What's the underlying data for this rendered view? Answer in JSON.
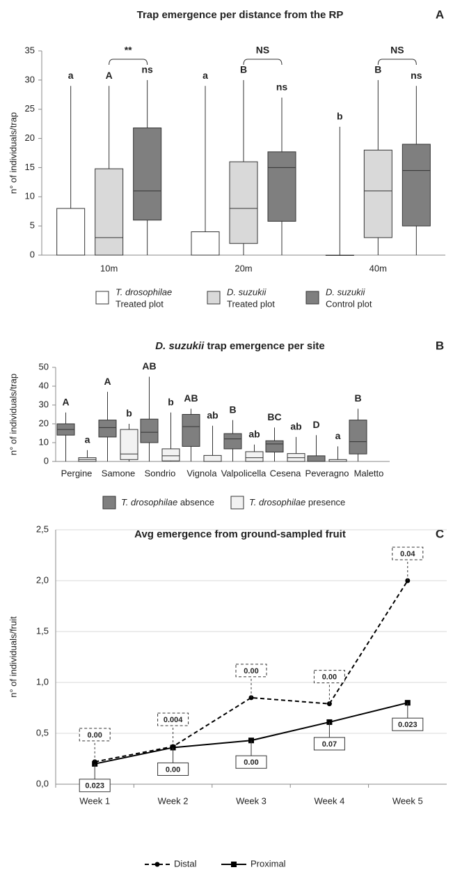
{
  "chart_data": [
    {
      "type": "box",
      "title": "Trap emergence per distance from the RP",
      "panel": "A",
      "ylabel": "n° of individuals/trap",
      "categories": [
        "10m",
        "20m",
        "40m"
      ],
      "ylim": [
        0,
        35
      ],
      "yticks": [
        0,
        5,
        10,
        15,
        20,
        25,
        30,
        35
      ],
      "grid": false,
      "group_labels": [
        "**",
        "NS",
        "NS"
      ],
      "series": [
        {
          "name": "T. drosophilae",
          "plot": "Treated plot",
          "color": "#ffffff",
          "min": [
            0,
            0,
            0
          ],
          "q1": [
            0,
            0,
            0
          ],
          "median": [
            0,
            0,
            0
          ],
          "q3": [
            8,
            4,
            0
          ],
          "max": [
            29,
            29,
            22
          ],
          "letters": [
            "a",
            "a",
            "b"
          ]
        },
        {
          "name": "D. suzukii",
          "plot": "Treated plot",
          "color": "#d9d9d9",
          "min": [
            0,
            0,
            0
          ],
          "q1": [
            0,
            2,
            3
          ],
          "median": [
            3,
            8,
            11
          ],
          "q3": [
            14.8,
            16,
            18
          ],
          "max": [
            29,
            30,
            30
          ],
          "letters": [
            "A",
            "B",
            "B"
          ]
        },
        {
          "name": "D. suzukii",
          "plot": "Control plot",
          "color": "#7f7f7f",
          "min": [
            0,
            0,
            0
          ],
          "q1": [
            6,
            5.8,
            5
          ],
          "median": [
            11,
            15,
            14.5
          ],
          "q3": [
            21.8,
            17.7,
            19
          ],
          "max": [
            30,
            27,
            29
          ],
          "letters": [
            "ns",
            "ns",
            "ns"
          ]
        }
      ]
    },
    {
      "type": "box",
      "title_species": "D. suzukii",
      "title": "trap emergence per site",
      "panel": "B",
      "ylabel": "n° of individuals/trap",
      "categories": [
        "Pergine",
        "Samone",
        "Sondrio",
        "Vignola",
        "Valpolicella",
        "Cesena",
        "Peveragno",
        "Maletto"
      ],
      "ylim": [
        0,
        50
      ],
      "yticks": [
        0,
        10,
        20,
        30,
        40,
        50
      ],
      "grid": false,
      "series": [
        {
          "name": "T. drosophilae",
          "plot": "absence",
          "color": "#7f7f7f",
          "min": [
            0,
            0,
            0,
            0,
            0,
            0,
            0,
            0
          ],
          "q1": [
            14,
            13,
            10,
            8,
            6.7,
            5,
            0,
            4
          ],
          "median": [
            17,
            18,
            15.5,
            18.5,
            12,
            9.3,
            0,
            10.5
          ],
          "q3": [
            20,
            22,
            22.5,
            25,
            14.8,
            11,
            3,
            22
          ],
          "max": [
            26,
            37,
            45,
            28,
            22,
            18,
            14,
            28
          ],
          "letters": [
            "A",
            "A",
            "AB",
            "AB",
            "B",
            "BC",
            "D",
            "B"
          ]
        },
        {
          "name": "T. drosophilae",
          "plot": "presence",
          "color": "#f2f2f2",
          "min": [
            0,
            0,
            0,
            0,
            0,
            0,
            0,
            null
          ],
          "q1": [
            0,
            1,
            0.3,
            0,
            0,
            0,
            0,
            null
          ],
          "median": [
            1,
            4,
            3,
            0,
            2,
            2,
            0,
            null
          ],
          "q3": [
            2,
            17,
            6.7,
            3.2,
            5.2,
            4.2,
            1,
            null
          ],
          "max": [
            6,
            20,
            26,
            19,
            9,
            13,
            8,
            null
          ],
          "letters": [
            "a",
            "b",
            "b",
            "ab",
            "ab",
            "ab",
            "a",
            null
          ]
        }
      ]
    },
    {
      "type": "line",
      "title": "Avg emergence from ground-sampled fruit",
      "panel": "C",
      "ylabel": "n° of individuals/fruit",
      "categories": [
        "Week 1",
        "Week 2",
        "Week 3",
        "Week 4",
        "Week 5"
      ],
      "ylim": [
        0,
        2.5
      ],
      "yticks": [
        {
          "value": 0,
          "label": "0,0"
        },
        {
          "value": 0.5,
          "label": "0,5"
        },
        {
          "value": 1,
          "label": "1,0"
        },
        {
          "value": 1.5,
          "label": "1,5"
        },
        {
          "value": 2,
          "label": "2,0"
        },
        {
          "value": 2.5,
          "label": "2,5"
        }
      ],
      "grid": true,
      "series": [
        {
          "name": "Distal",
          "color": "#000000",
          "dashed": true,
          "marker": "circle",
          "values": [
            0.22,
            0.37,
            0.85,
            0.79,
            2.0
          ],
          "annotations": [
            "0.00",
            "0.004",
            "0.00",
            "0.00",
            "0.04"
          ]
        },
        {
          "name": "Proximal",
          "color": "#000000",
          "dashed": false,
          "marker": "square",
          "values": [
            0.2,
            0.36,
            0.43,
            0.61,
            0.8
          ],
          "annotations": [
            "0.023",
            "0.00",
            "0.00",
            "0.07",
            "0.023"
          ]
        }
      ]
    }
  ]
}
